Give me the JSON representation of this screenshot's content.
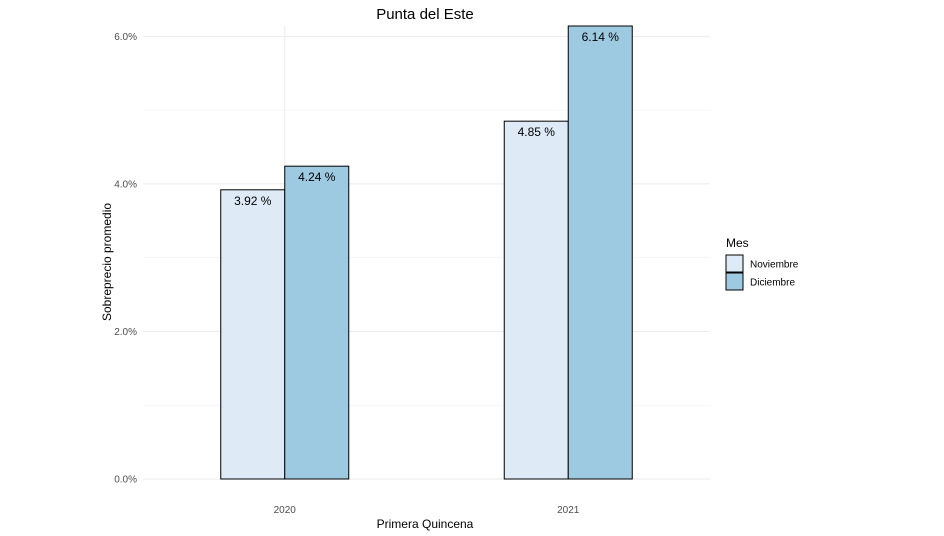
{
  "chart_data": {
    "type": "bar",
    "title": "Punta del Este",
    "xlabel": "Primera Quincena",
    "ylabel": "Sobreprecio promedio",
    "categories": [
      "2020",
      "2021"
    ],
    "series": [
      {
        "name": "Noviembre",
        "color": "#deebf7",
        "values": [
          3.92,
          4.85
        ],
        "labels": [
          "3.92 %",
          "4.85 %"
        ]
      },
      {
        "name": "Diciembre",
        "color": "#9ecae1",
        "values": [
          4.24,
          6.14
        ],
        "labels": [
          "4.24 %",
          "6.14 %"
        ]
      }
    ],
    "ylim": [
      0,
      6.14
    ],
    "yticks": [
      0,
      2,
      4,
      6
    ],
    "ytick_labels": [
      "0.0%",
      "2.0%",
      "4.0%",
      "6.0%"
    ],
    "legend": {
      "title": "Mes",
      "position": "right"
    },
    "grid": true
  }
}
